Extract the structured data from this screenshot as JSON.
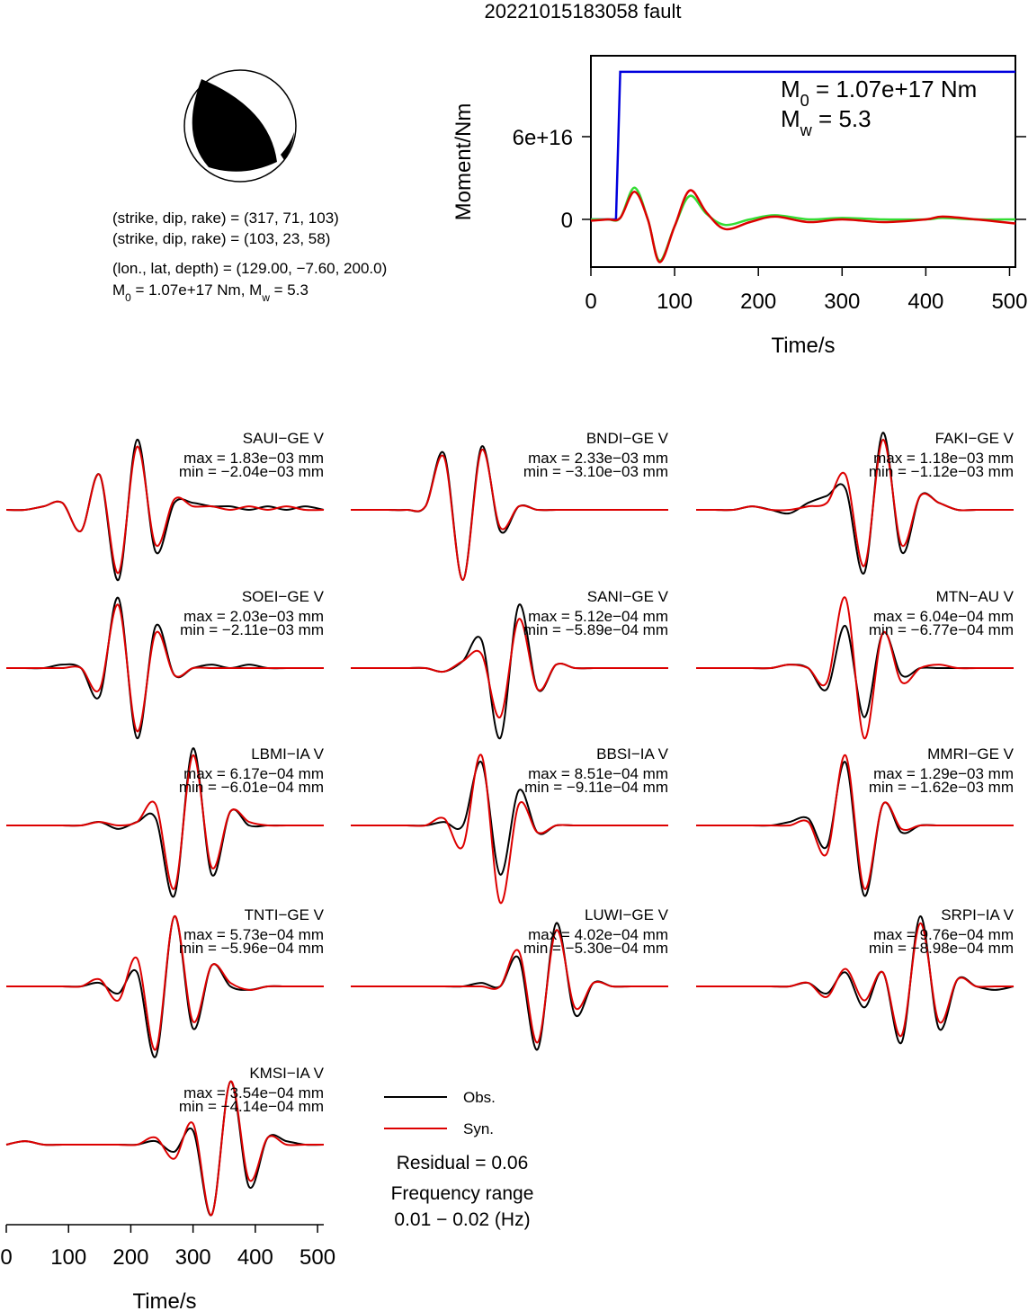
{
  "title": "20221015183058 fault",
  "info_lines": [
    [
      "(strike, dip, rake) = (317, 71, 103)"
    ],
    [
      "(strike, dip, rake) = (103, 23, 58)"
    ],
    [
      "(lon., lat, depth) = (129.00, −7.60, 200.0)"
    ],
    [
      "M",
      "0",
      " = 1.07e+17 Nm, M",
      "w",
      " = 5.3"
    ]
  ],
  "chart_data": [
    {
      "type": "line",
      "ylabel": "Moment/Nm",
      "xlabel": "Time/s",
      "xlim": [
        0,
        507
      ],
      "ylim": [
        -3.46e+16,
        1.187e+17
      ],
      "xticks": [
        0,
        100,
        200,
        300,
        400,
        500
      ],
      "yticks": [
        0,
        {
          "value": 6e+16,
          "label": "6e+16"
        }
      ],
      "annotations": [
        [
          "M",
          "0",
          " = 1.07e+17 Nm"
        ],
        [
          "M",
          "w",
          " = 5.3"
        ]
      ],
      "series": [
        {
          "color": "#0000dd",
          "x": [
            0,
            30,
            35,
            507
          ],
          "values": [
            0,
            0,
            1.07e+17,
            1.07e+17
          ]
        },
        {
          "color": "#33dd33",
          "x": [
            0,
            20,
            35,
            52,
            68,
            82,
            100,
            118,
            138,
            160,
            190,
            220,
            260,
            300,
            350,
            400,
            420,
            460,
            507
          ],
          "values": [
            0,
            0,
            1000000000000000.0,
            2.3e+16,
            0,
            -3e+16,
            -5000000000000000.0,
            1.7e+16,
            4000000000000000.0,
            -4000000000000000.0,
            0,
            3000000000000000.0,
            0,
            1000000000000000.0,
            0,
            0,
            1000000000000000.0,
            0,
            0
          ]
        },
        {
          "color": "#dd0000",
          "x": [
            0,
            20,
            35,
            52,
            68,
            82,
            100,
            118,
            138,
            160,
            190,
            220,
            260,
            300,
            350,
            400,
            420,
            460,
            507
          ],
          "values": [
            -1000000000000000.0,
            0,
            1000000000000000.0,
            2e+16,
            0,
            -3.1e+16,
            -5000000000000000.0,
            2.1e+16,
            5000000000000000.0,
            -7000000000000000.0,
            -2000000000000000.0,
            2000000000000000.0,
            -2000000000000000.0,
            0,
            -2000000000000000.0,
            0,
            2000000000000000.0,
            0,
            -3000000000000000.0
          ]
        }
      ]
    },
    {
      "type": "waveform",
      "xlabel": "Time/s",
      "xlim": [
        0,
        510
      ],
      "xticks": [
        0,
        100,
        200,
        300,
        400,
        500
      ],
      "x": [
        0,
        30,
        60,
        90,
        120,
        150,
        180,
        210,
        240,
        270,
        300,
        330,
        360,
        390,
        420,
        450,
        480,
        510
      ],
      "series": [
        {
          "name": "Obs.",
          "color": "#000000"
        },
        {
          "name": "Syn.",
          "color": "#dd0000"
        }
      ],
      "residual": "Residual = 0.06",
      "frequency": [
        "Frequency range",
        "0.01 − 0.02 (Hz)"
      ],
      "stations": [
        {
          "name": "SAUI−GE V",
          "max": "max = 1.83e−03 mm",
          "min": "min = −2.04e−03 mm",
          "obs": [
            0,
            0,
            0.05,
            0.1,
            -0.3,
            0.5,
            -1.0,
            1.0,
            -0.6,
            0.1,
            0.1,
            0.05,
            0.05,
            0,
            0.05,
            0,
            0.05,
            0
          ],
          "syn": [
            0,
            0,
            0.05,
            0.1,
            -0.3,
            0.5,
            -0.9,
            0.9,
            -0.5,
            0.15,
            0.05,
            0.05,
            0,
            0.05,
            0,
            0.05,
            0,
            0
          ]
        },
        {
          "name": "BNDI−GE V",
          "max": "max = 2.33e−03 mm",
          "min": "min = −3.10e−03 mm",
          "obs": [
            0,
            0,
            0,
            0,
            0.05,
            0.8,
            -1.0,
            0.9,
            -0.3,
            0.05,
            0,
            0,
            0,
            0,
            0,
            0,
            0,
            0
          ],
          "syn": [
            0,
            0,
            0,
            0,
            0.05,
            0.75,
            -1.0,
            0.85,
            -0.25,
            0.05,
            0,
            0,
            0,
            0,
            0,
            0,
            0,
            0
          ]
        },
        {
          "name": "FAKI−GE V",
          "max": "max = 1.18e−03 mm",
          "min": "min = −1.12e−03 mm",
          "obs": [
            0,
            0,
            0,
            0.05,
            0,
            -0.05,
            0.1,
            0.2,
            0.3,
            -0.9,
            1.1,
            -0.6,
            0.2,
            0.1,
            0,
            0,
            0,
            0
          ],
          "syn": [
            0,
            0,
            0,
            0.05,
            0,
            0,
            0.05,
            0.1,
            0.5,
            -0.8,
            1.0,
            -0.5,
            0.2,
            0.1,
            0,
            0,
            0,
            0
          ]
        },
        {
          "name": "SOEI−GE V",
          "max": "max = 2.03e−03 mm",
          "min": "min = −2.11e−03 mm",
          "obs": [
            0,
            0,
            0,
            0.05,
            0,
            -0.4,
            1.0,
            -1.0,
            0.6,
            -0.1,
            0,
            0.05,
            0,
            0.05,
            0,
            0,
            0,
            0
          ],
          "syn": [
            0,
            0,
            0,
            0,
            0,
            -0.3,
            0.9,
            -0.9,
            0.5,
            -0.1,
            0,
            0,
            0,
            0,
            0,
            0,
            0,
            0
          ]
        },
        {
          "name": "SANI−GE V",
          "max": "max = 5.12e−04 mm",
          "min": "min = −5.89e−04 mm",
          "obs": [
            0,
            0,
            0,
            0,
            0,
            -0.05,
            0.1,
            0.4,
            -1.0,
            0.9,
            -0.3,
            0.05,
            0,
            0,
            0,
            0,
            0,
            0
          ],
          "syn": [
            0,
            0,
            0,
            0,
            0,
            -0.05,
            0.1,
            0.2,
            -0.7,
            0.7,
            -0.3,
            0.05,
            0,
            0,
            0,
            0,
            0,
            0
          ]
        },
        {
          "name": "MTN−AU V",
          "max": "max = 6.04e−04 mm",
          "min": "min = −6.77e−04 mm",
          "obs": [
            0,
            0,
            0,
            0,
            0,
            0.05,
            0,
            -0.3,
            0.6,
            -0.7,
            0.5,
            -0.1,
            0,
            0,
            0,
            0,
            0,
            0
          ],
          "syn": [
            0,
            0,
            0,
            0,
            0,
            0.05,
            0,
            -0.2,
            1.0,
            -1.0,
            0.5,
            -0.2,
            0,
            0.05,
            0,
            0,
            0,
            0
          ]
        },
        {
          "name": "LBMI−IA V",
          "max": "max = 6.17e−04 mm",
          "min": "min = −6.01e−04 mm",
          "obs": [
            0,
            0,
            0,
            0,
            0,
            0.05,
            -0.05,
            0.05,
            0.1,
            -1.0,
            1.1,
            -0.7,
            0.2,
            0,
            0,
            0,
            0,
            0
          ],
          "syn": [
            0,
            0,
            0,
            0,
            0,
            0.05,
            0,
            0.05,
            0.3,
            -0.9,
            1.0,
            -0.6,
            0.2,
            0.05,
            0,
            0,
            0,
            0
          ]
        },
        {
          "name": "BBSI−IA V",
          "max": "max = 8.51e−04 mm",
          "min": "min = −9.11e−04 mm",
          "obs": [
            0,
            0,
            0,
            0,
            0,
            0.05,
            0,
            0.9,
            -0.7,
            0.5,
            -0.1,
            0,
            0,
            0,
            0,
            0,
            0,
            0
          ],
          "syn": [
            0,
            0,
            0,
            0,
            0,
            0.1,
            -0.3,
            1.0,
            -1.1,
            0.3,
            -0.1,
            0,
            0,
            0,
            0,
            0,
            0,
            0
          ]
        },
        {
          "name": "MMRI−GE V",
          "max": "max = 1.29e−03 mm",
          "min": "min = −1.62e−03 mm",
          "obs": [
            0,
            0,
            0,
            0,
            0,
            0.05,
            0.1,
            -0.3,
            0.9,
            -1.0,
            0.3,
            -0.1,
            0,
            0,
            0,
            0,
            0,
            0
          ],
          "syn": [
            0,
            0,
            0,
            0,
            0,
            0,
            0.05,
            -0.4,
            1.0,
            -0.9,
            0.3,
            -0.05,
            0,
            0,
            0,
            0,
            0,
            0
          ]
        },
        {
          "name": "TNTI−GE V",
          "max": "max = 5.73e−04 mm",
          "min": "min = −5.96e−04 mm",
          "obs": [
            0,
            0,
            0,
            0,
            0,
            0.05,
            -0.1,
            0.2,
            -1.0,
            1.0,
            -0.6,
            0.3,
            0,
            -0.05,
            0,
            0,
            0,
            0
          ],
          "syn": [
            0,
            0,
            0,
            0,
            0,
            0.1,
            -0.2,
            0.4,
            -0.9,
            1.0,
            -0.5,
            0.3,
            0.05,
            -0.05,
            0,
            0,
            0,
            0
          ]
        },
        {
          "name": "LUWI−GE V",
          "max": "max = 4.02e−04 mm",
          "min": "min = −5.30e−04 mm",
          "obs": [
            0,
            0,
            0,
            0,
            0,
            0,
            0,
            0.05,
            0,
            0.4,
            -0.9,
            0.9,
            -0.4,
            0.05,
            0,
            0,
            0,
            0
          ],
          "syn": [
            0,
            0,
            0,
            0,
            0,
            0,
            0,
            0,
            0,
            0.5,
            -0.8,
            0.8,
            -0.3,
            0.05,
            0,
            0,
            0,
            0
          ]
        },
        {
          "name": "SRPI−IA V",
          "max": "max = 9.76e−04 mm",
          "min": "min = −8.98e−04 mm",
          "obs": [
            0,
            0,
            0,
            0,
            0,
            0,
            0.05,
            -0.1,
            0.2,
            -0.3,
            0.2,
            -0.8,
            1.0,
            -0.6,
            0.1,
            0,
            -0.05,
            0
          ],
          "syn": [
            0,
            0,
            0,
            0,
            0,
            0,
            0.05,
            -0.15,
            0.25,
            -0.2,
            0.2,
            -0.7,
            0.9,
            -0.5,
            0.1,
            0,
            0,
            0
          ]
        },
        {
          "name": "KMSI−IA V",
          "max": "max = 3.54e−04 mm",
          "min": "min = −4.14e−04 mm",
          "obs": [
            0,
            0.05,
            0,
            0,
            0,
            0,
            0,
            0,
            0.05,
            -0.1,
            0.2,
            -1.0,
            0.9,
            -0.6,
            0.1,
            0.05,
            0,
            0
          ],
          "syn": [
            0,
            0.05,
            0,
            0,
            0,
            0,
            0,
            0,
            0.1,
            -0.2,
            0.3,
            -1.0,
            0.9,
            -0.5,
            0.1,
            0,
            0,
            0
          ]
        }
      ]
    }
  ]
}
